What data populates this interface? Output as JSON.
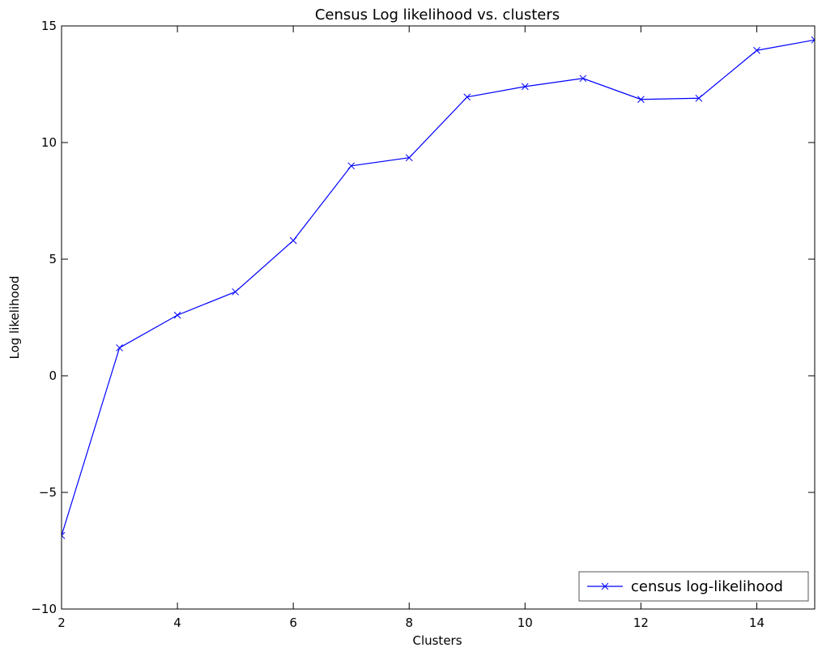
{
  "chart_data": {
    "type": "line",
    "title": "Census  Log likelihood vs. clusters",
    "xlabel": "Clusters",
    "ylabel": "Log likelihood",
    "xlim": [
      2,
      15
    ],
    "ylim": [
      -10,
      15
    ],
    "xticks": [
      2,
      4,
      6,
      8,
      10,
      12,
      14
    ],
    "yticks": [
      -10,
      -5,
      0,
      5,
      10,
      15
    ],
    "xtick_labels": [
      "2",
      "4",
      "6",
      "8",
      "10",
      "12",
      "14"
    ],
    "ytick_labels": [
      "−10",
      "−5",
      "0",
      "5",
      "10",
      "15"
    ],
    "grid": false,
    "legend_position": "lower-right",
    "series": [
      {
        "name": "census log-likelihood",
        "color": "#0000ff",
        "marker": "x",
        "x": [
          2,
          3,
          4,
          5,
          6,
          7,
          8,
          9,
          10,
          11,
          12,
          13,
          14,
          15
        ],
        "y": [
          -6.85,
          1.2,
          2.6,
          3.6,
          5.8,
          9.0,
          9.35,
          11.95,
          12.4,
          12.75,
          11.85,
          11.9,
          13.95,
          14.4
        ]
      }
    ]
  }
}
